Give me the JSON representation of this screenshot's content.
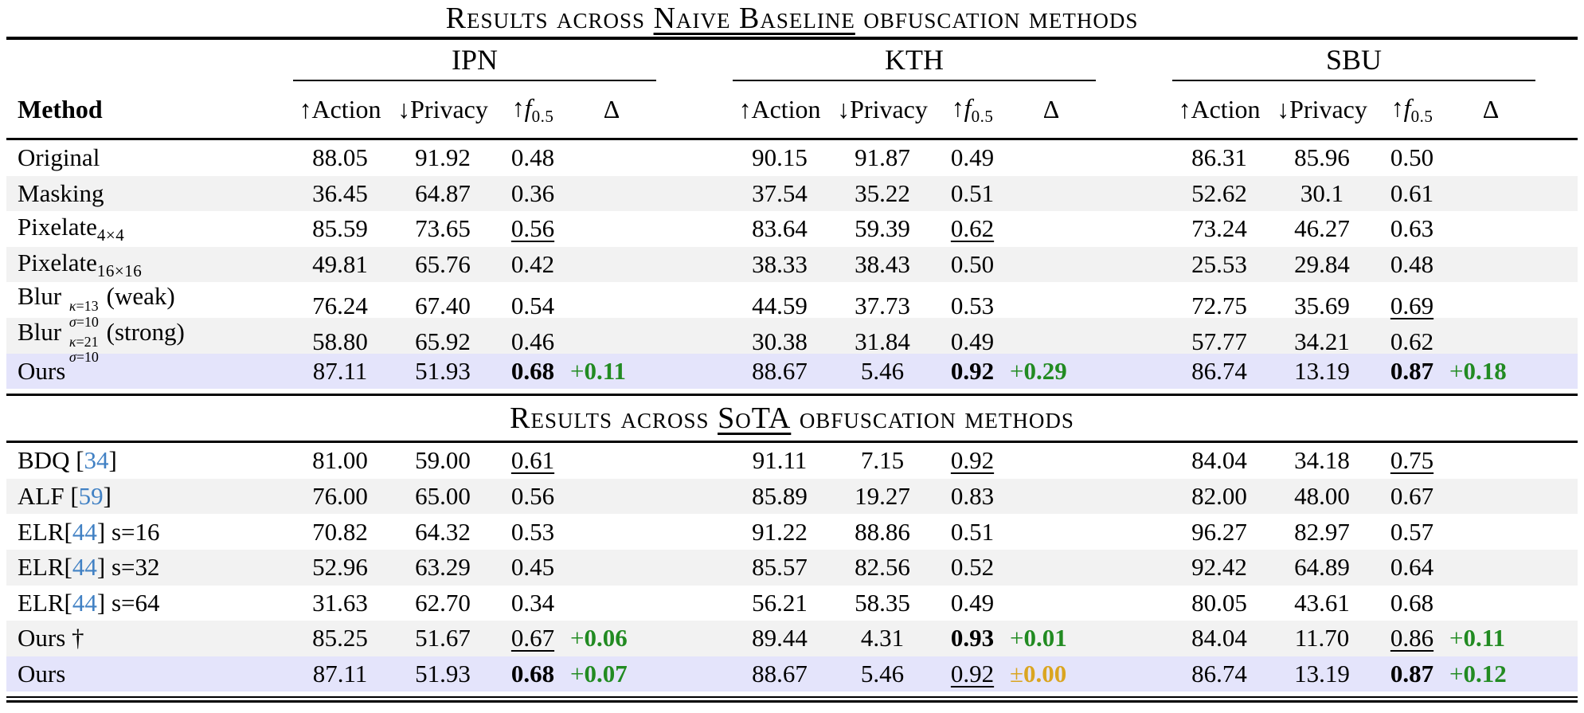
{
  "colors": {
    "row_stripe": "#F2F2F2",
    "row_highlight": "#E4E4FB",
    "delta_positive": "#228B22",
    "delta_neutral": "#DAA520",
    "citation_blue": "#4181C4",
    "rule_black": "#000000"
  },
  "header": {
    "method_label": "Method",
    "groups": [
      "IPN",
      "KTH",
      "SBU"
    ],
    "metrics": [
      {
        "arrow": "↑",
        "name": "Action"
      },
      {
        "arrow": "↓",
        "name": "Privacy"
      },
      {
        "arrow": "↑",
        "name": "f",
        "italic": true,
        "sub": "0.5"
      },
      {
        "arrow": "",
        "name": "Δ"
      }
    ]
  },
  "sections": [
    {
      "title": {
        "pre": "Results across ",
        "underlined": "Naive Baseline",
        "post": " obfuscation methods"
      },
      "rows": [
        {
          "bg": "plain",
          "method": [
            {
              "t": "Original"
            }
          ],
          "cells": [
            [
              "88.05",
              "91.92",
              {
                "v": "0.48"
              },
              null
            ],
            [
              "90.15",
              "91.87",
              {
                "v": "0.49"
              },
              null
            ],
            [
              "86.31",
              "85.96",
              {
                "v": "0.50"
              },
              null
            ]
          ]
        },
        {
          "bg": "stripe",
          "method": [
            {
              "t": "Masking"
            }
          ],
          "cells": [
            [
              "36.45",
              "64.87",
              {
                "v": "0.36"
              },
              null
            ],
            [
              "37.54",
              "35.22",
              {
                "v": "0.51"
              },
              null
            ],
            [
              "52.62",
              "30.1",
              {
                "v": "0.61"
              },
              null
            ]
          ]
        },
        {
          "bg": "plain",
          "method": [
            {
              "t": "Pixelate"
            },
            {
              "sub": "4×4"
            }
          ],
          "cells": [
            [
              "85.59",
              "73.65",
              {
                "v": "0.56",
                "s": "u"
              },
              null
            ],
            [
              "83.64",
              "59.39",
              {
                "v": "0.62",
                "s": "u"
              },
              null
            ],
            [
              "73.24",
              "46.27",
              {
                "v": "0.63"
              },
              null
            ]
          ]
        },
        {
          "bg": "stripe",
          "method": [
            {
              "t": "Pixelate"
            },
            {
              "sub": "16×16"
            }
          ],
          "cells": [
            [
              "49.81",
              "65.76",
              {
                "v": "0.42"
              },
              null
            ],
            [
              "38.33",
              "38.43",
              {
                "v": "0.50"
              },
              null
            ],
            [
              "25.53",
              "29.84",
              {
                "v": "0.48"
              },
              null
            ]
          ]
        },
        {
          "bg": "plain",
          "method": [
            {
              "t": "Blur "
            },
            {
              "stack": [
                "κ=13",
                "σ=10"
              ]
            },
            {
              "t": " (weak)"
            }
          ],
          "cells": [
            [
              "76.24",
              "67.40",
              {
                "v": "0.54"
              },
              null
            ],
            [
              "44.59",
              "37.73",
              {
                "v": "0.53"
              },
              null
            ],
            [
              "72.75",
              "35.69",
              {
                "v": "0.69",
                "s": "u"
              },
              null
            ]
          ]
        },
        {
          "bg": "stripe",
          "method": [
            {
              "t": "Blur "
            },
            {
              "stack": [
                "κ=21",
                "σ=10"
              ]
            },
            {
              "t": " (strong)"
            }
          ],
          "cells": [
            [
              "58.80",
              "65.92",
              {
                "v": "0.46"
              },
              null
            ],
            [
              "30.38",
              "31.84",
              {
                "v": "0.49"
              },
              null
            ],
            [
              "57.77",
              "34.21",
              {
                "v": "0.62"
              },
              null
            ]
          ]
        },
        {
          "bg": "hl",
          "method": [
            {
              "t": "Ours"
            }
          ],
          "cells": [
            [
              "87.11",
              "51.93",
              {
                "v": "0.68",
                "s": "b"
              },
              {
                "sign": "+",
                "num": "0.11",
                "c": "g"
              }
            ],
            [
              "88.67",
              "5.46",
              {
                "v": "0.92",
                "s": "b"
              },
              {
                "sign": "+",
                "num": "0.29",
                "c": "g"
              }
            ],
            [
              "86.74",
              "13.19",
              {
                "v": "0.87",
                "s": "b"
              },
              {
                "sign": "+",
                "num": "0.18",
                "c": "g"
              }
            ]
          ]
        }
      ]
    },
    {
      "title": {
        "pre": "Results across ",
        "underlined": "SoTA",
        "post": " obfuscation methods"
      },
      "rows": [
        {
          "bg": "plain",
          "method": [
            {
              "t": "BDQ ["
            },
            {
              "cite": "34"
            },
            {
              "t": "]"
            }
          ],
          "cells": [
            [
              "81.00",
              "59.00",
              {
                "v": "0.61",
                "s": "u"
              },
              null
            ],
            [
              "91.11",
              "7.15",
              {
                "v": "0.92",
                "s": "u"
              },
              null
            ],
            [
              "84.04",
              "34.18",
              {
                "v": "0.75",
                "s": "u"
              },
              null
            ]
          ]
        },
        {
          "bg": "stripe",
          "method": [
            {
              "t": "ALF ["
            },
            {
              "cite": "59"
            },
            {
              "t": "]"
            }
          ],
          "cells": [
            [
              "76.00",
              "65.00",
              {
                "v": "0.56"
              },
              null
            ],
            [
              "85.89",
              "19.27",
              {
                "v": "0.83"
              },
              null
            ],
            [
              "82.00",
              "48.00",
              {
                "v": "0.67"
              },
              null
            ]
          ]
        },
        {
          "bg": "plain",
          "method": [
            {
              "t": "ELR["
            },
            {
              "cite": "44"
            },
            {
              "t": "] s=16"
            }
          ],
          "cells": [
            [
              "70.82",
              "64.32",
              {
                "v": "0.53"
              },
              null
            ],
            [
              "91.22",
              "88.86",
              {
                "v": "0.51"
              },
              null
            ],
            [
              "96.27",
              "82.97",
              {
                "v": "0.57"
              },
              null
            ]
          ]
        },
        {
          "bg": "stripe",
          "method": [
            {
              "t": "ELR["
            },
            {
              "cite": "44"
            },
            {
              "t": "] s=32"
            }
          ],
          "cells": [
            [
              "52.96",
              "63.29",
              {
                "v": "0.45"
              },
              null
            ],
            [
              "85.57",
              "82.56",
              {
                "v": "0.52"
              },
              null
            ],
            [
              "92.42",
              "64.89",
              {
                "v": "0.64"
              },
              null
            ]
          ]
        },
        {
          "bg": "plain",
          "method": [
            {
              "t": "ELR["
            },
            {
              "cite": "44"
            },
            {
              "t": "] s=64"
            }
          ],
          "cells": [
            [
              "31.63",
              "62.70",
              {
                "v": "0.34"
              },
              null
            ],
            [
              "56.21",
              "58.35",
              {
                "v": "0.49"
              },
              null
            ],
            [
              "80.05",
              "43.61",
              {
                "v": "0.68"
              },
              null
            ]
          ]
        },
        {
          "bg": "stripe",
          "method": [
            {
              "t": "Ours †"
            }
          ],
          "cells": [
            [
              "85.25",
              "51.67",
              {
                "v": "0.67",
                "s": "u"
              },
              {
                "sign": "+",
                "num": "0.06",
                "c": "g"
              }
            ],
            [
              "89.44",
              "4.31",
              {
                "v": "0.93",
                "s": "b"
              },
              {
                "sign": "+",
                "num": "0.01",
                "c": "g"
              }
            ],
            [
              "84.04",
              "11.70",
              {
                "v": "0.86",
                "s": "u"
              },
              {
                "sign": "+",
                "num": "0.11",
                "c": "g"
              }
            ]
          ]
        },
        {
          "bg": "hl",
          "method": [
            {
              "t": "Ours"
            }
          ],
          "cells": [
            [
              "87.11",
              "51.93",
              {
                "v": "0.68",
                "s": "b"
              },
              {
                "sign": "+",
                "num": "0.07",
                "c": "g"
              }
            ],
            [
              "88.67",
              "5.46",
              {
                "v": "0.92",
                "s": "u"
              },
              {
                "sign": "±",
                "num": "0.00",
                "c": "o"
              }
            ],
            [
              "86.74",
              "13.19",
              {
                "v": "0.87",
                "s": "b"
              },
              {
                "sign": "+",
                "num": "0.12",
                "c": "g"
              }
            ]
          ]
        }
      ]
    }
  ]
}
